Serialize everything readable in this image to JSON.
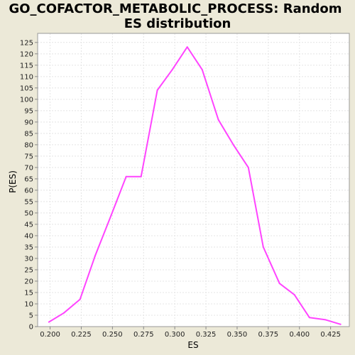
{
  "chart_data": {
    "type": "line",
    "title_lines": [
      "GO_COFACTOR_METABOLIC_PROCESS: Random",
      "ES distribution"
    ],
    "xlabel": "ES",
    "ylabel": "P(ES)",
    "xlim": [
      0.19,
      0.44
    ],
    "ylim": [
      0,
      129
    ],
    "xticks": [
      0.2,
      0.225,
      0.25,
      0.275,
      0.3,
      0.325,
      0.35,
      0.375,
      0.4,
      0.425
    ],
    "xtick_labels": [
      "0.200",
      "0.225",
      "0.250",
      "0.275",
      "0.300",
      "0.325",
      "0.350",
      "0.375",
      "0.400",
      "0.425"
    ],
    "yticks": [
      0,
      5,
      10,
      15,
      20,
      25,
      30,
      35,
      40,
      45,
      50,
      55,
      60,
      65,
      70,
      75,
      80,
      85,
      90,
      95,
      100,
      105,
      110,
      115,
      120,
      125
    ],
    "grid": true,
    "series": [
      {
        "color": "#ff44ff",
        "x": [
          0.199,
          0.211,
          0.224,
          0.236,
          0.249,
          0.261,
          0.273,
          0.286,
          0.298,
          0.31,
          0.322,
          0.335,
          0.347,
          0.359,
          0.371,
          0.384,
          0.396,
          0.408,
          0.421,
          0.433
        ],
        "y": [
          2,
          6,
          12,
          31,
          49,
          66,
          66,
          104,
          113,
          123,
          113,
          91,
          80,
          70,
          35,
          19,
          14,
          4,
          3,
          1
        ]
      }
    ]
  }
}
